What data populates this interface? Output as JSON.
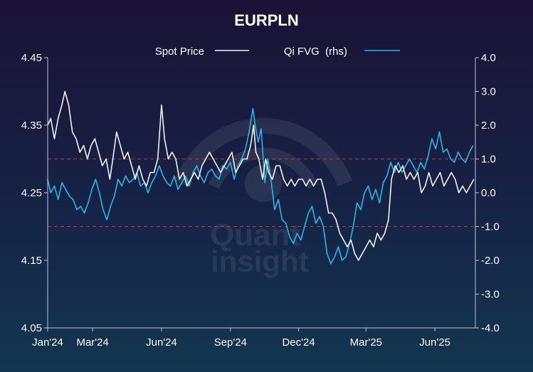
{
  "chart_data": {
    "type": "line",
    "title": "EURPLN",
    "watermark": [
      "Quant",
      "insight"
    ],
    "colors": {
      "spot": "#f2f2f2",
      "fvg": "#29b6e6",
      "bands": "#c0392b",
      "axis": "#bfc6d6"
    },
    "x_tick_labels": [
      "Jan'24",
      "Mar'24",
      "Jun'24",
      "Sep'24",
      "Dec'24",
      "Mar'25",
      "Jun'25"
    ],
    "x_tick_dates": [
      "2024-01-01",
      "2024-03-01",
      "2024-06-01",
      "2024-09-01",
      "2024-12-01",
      "2025-03-01",
      "2025-06-01"
    ],
    "x_range": [
      "2024-01-01",
      "2025-07-25"
    ],
    "y_left": {
      "ticks": [
        "4.05",
        "4.15",
        "4.25",
        "4.35",
        "4.45"
      ],
      "range": [
        4.05,
        4.45
      ]
    },
    "y_right": {
      "ticks": [
        "-4.0",
        "-3.0",
        "-2.0",
        "-1.0",
        "0.0",
        "1.0",
        "2.0",
        "3.0",
        "4.0"
      ],
      "range": [
        -4.0,
        4.0
      ]
    },
    "reference_lines_rhs": [
      1.0,
      -1.0
    ],
    "legend_position": "top-center",
    "series": [
      {
        "name": "Spot Price",
        "axis": "left",
        "points": [
          [
            "2024-01-01",
            4.35
          ],
          [
            "2024-01-05",
            4.36
          ],
          [
            "2024-01-10",
            4.33
          ],
          [
            "2024-01-15",
            4.36
          ],
          [
            "2024-01-20",
            4.38
          ],
          [
            "2024-01-24",
            4.4
          ],
          [
            "2024-01-29",
            4.38
          ],
          [
            "2024-02-03",
            4.34
          ],
          [
            "2024-02-08",
            4.33
          ],
          [
            "2024-02-13",
            4.31
          ],
          [
            "2024-02-18",
            4.32
          ],
          [
            "2024-02-23",
            4.3
          ],
          [
            "2024-02-28",
            4.32
          ],
          [
            "2024-03-04",
            4.33
          ],
          [
            "2024-03-09",
            4.31
          ],
          [
            "2024-03-14",
            4.29
          ],
          [
            "2024-03-19",
            4.3
          ],
          [
            "2024-03-24",
            4.27
          ],
          [
            "2024-03-28",
            4.3
          ],
          [
            "2024-04-02",
            4.34
          ],
          [
            "2024-04-07",
            4.32
          ],
          [
            "2024-04-12",
            4.3
          ],
          [
            "2024-04-17",
            4.31
          ],
          [
            "2024-04-22",
            4.29
          ],
          [
            "2024-04-27",
            4.27
          ],
          [
            "2024-05-02",
            4.29
          ],
          [
            "2024-05-07",
            4.27
          ],
          [
            "2024-05-12",
            4.26
          ],
          [
            "2024-05-17",
            4.28
          ],
          [
            "2024-05-22",
            4.28
          ],
          [
            "2024-05-27",
            4.3
          ],
          [
            "2024-06-01",
            4.38
          ],
          [
            "2024-06-05",
            4.33
          ],
          [
            "2024-06-10",
            4.3
          ],
          [
            "2024-06-15",
            4.31
          ],
          [
            "2024-06-20",
            4.3
          ],
          [
            "2024-06-25",
            4.27
          ],
          [
            "2024-06-30",
            4.28
          ],
          [
            "2024-07-05",
            4.26
          ],
          [
            "2024-07-10",
            4.27
          ],
          [
            "2024-07-15",
            4.28
          ],
          [
            "2024-07-20",
            4.27
          ],
          [
            "2024-07-25",
            4.29
          ],
          [
            "2024-07-30",
            4.3
          ],
          [
            "2024-08-04",
            4.31
          ],
          [
            "2024-08-09",
            4.3
          ],
          [
            "2024-08-14",
            4.29
          ],
          [
            "2024-08-19",
            4.28
          ],
          [
            "2024-08-24",
            4.29
          ],
          [
            "2024-08-29",
            4.3
          ],
          [
            "2024-09-03",
            4.31
          ],
          [
            "2024-09-08",
            4.28
          ],
          [
            "2024-09-13",
            4.29
          ],
          [
            "2024-09-18",
            4.3
          ],
          [
            "2024-09-23",
            4.3
          ],
          [
            "2024-09-28",
            4.32
          ],
          [
            "2024-10-02",
            4.35
          ],
          [
            "2024-10-05",
            4.31
          ],
          [
            "2024-10-09",
            4.3
          ],
          [
            "2024-10-14",
            4.27
          ],
          [
            "2024-10-18",
            4.3
          ],
          [
            "2024-10-22",
            4.28
          ],
          [
            "2024-10-27",
            4.27
          ],
          [
            "2024-11-01",
            4.29
          ],
          [
            "2024-11-06",
            4.29
          ],
          [
            "2024-11-11",
            4.27
          ],
          [
            "2024-11-16",
            4.26
          ],
          [
            "2024-11-21",
            4.27
          ],
          [
            "2024-11-26",
            4.26
          ],
          [
            "2024-12-01",
            4.27
          ],
          [
            "2024-12-06",
            4.27
          ],
          [
            "2024-12-11",
            4.26
          ],
          [
            "2024-12-16",
            4.27
          ],
          [
            "2024-12-21",
            4.26
          ],
          [
            "2024-12-26",
            4.27
          ],
          [
            "2024-12-31",
            4.27
          ],
          [
            "2025-01-05",
            4.25
          ],
          [
            "2025-01-10",
            4.22
          ],
          [
            "2025-01-15",
            4.22
          ],
          [
            "2025-01-20",
            4.21
          ],
          [
            "2025-01-25",
            4.19
          ],
          [
            "2025-01-30",
            4.18
          ],
          [
            "2025-02-04",
            4.17
          ],
          [
            "2025-02-09",
            4.18
          ],
          [
            "2025-02-14",
            4.16
          ],
          [
            "2025-02-19",
            4.15
          ],
          [
            "2025-02-24",
            4.16
          ],
          [
            "2025-03-01",
            4.17
          ],
          [
            "2025-03-06",
            4.18
          ],
          [
            "2025-03-11",
            4.17
          ],
          [
            "2025-03-16",
            4.19
          ],
          [
            "2025-03-21",
            4.18
          ],
          [
            "2025-03-26",
            4.19
          ],
          [
            "2025-03-31",
            4.21
          ],
          [
            "2025-04-04",
            4.27
          ],
          [
            "2025-04-09",
            4.29
          ],
          [
            "2025-04-14",
            4.28
          ],
          [
            "2025-04-19",
            4.29
          ],
          [
            "2025-04-24",
            4.27
          ],
          [
            "2025-04-29",
            4.28
          ],
          [
            "2025-05-04",
            4.27
          ],
          [
            "2025-05-09",
            4.28
          ],
          [
            "2025-05-14",
            4.25
          ],
          [
            "2025-05-19",
            4.26
          ],
          [
            "2025-05-24",
            4.28
          ],
          [
            "2025-05-29",
            4.26
          ],
          [
            "2025-06-03",
            4.27
          ],
          [
            "2025-06-08",
            4.28
          ],
          [
            "2025-06-13",
            4.26
          ],
          [
            "2025-06-18",
            4.27
          ],
          [
            "2025-06-23",
            4.28
          ],
          [
            "2025-06-28",
            4.27
          ],
          [
            "2025-07-03",
            4.25
          ],
          [
            "2025-07-08",
            4.26
          ],
          [
            "2025-07-13",
            4.25
          ],
          [
            "2025-07-18",
            4.26
          ],
          [
            "2025-07-23",
            4.27
          ]
        ]
      },
      {
        "name": "Qi FVG  (rhs)",
        "axis": "right",
        "points": [
          [
            "2024-01-01",
            0.4
          ],
          [
            "2024-01-05",
            0.0
          ],
          [
            "2024-01-10",
            0.2
          ],
          [
            "2024-01-15",
            -0.2
          ],
          [
            "2024-01-20",
            0.3
          ],
          [
            "2024-01-25",
            0.1
          ],
          [
            "2024-01-30",
            -0.1
          ],
          [
            "2024-02-04",
            -0.2
          ],
          [
            "2024-02-09",
            -0.5
          ],
          [
            "2024-02-14",
            -0.4
          ],
          [
            "2024-02-19",
            -0.6
          ],
          [
            "2024-02-24",
            -0.3
          ],
          [
            "2024-02-29",
            0.1
          ],
          [
            "2024-03-05",
            0.4
          ],
          [
            "2024-03-10",
            0.0
          ],
          [
            "2024-03-15",
            -0.5
          ],
          [
            "2024-03-20",
            -0.8
          ],
          [
            "2024-03-25",
            -0.4
          ],
          [
            "2024-03-30",
            -0.1
          ],
          [
            "2024-04-04",
            0.4
          ],
          [
            "2024-04-09",
            0.2
          ],
          [
            "2024-04-14",
            0.5
          ],
          [
            "2024-04-19",
            0.3
          ],
          [
            "2024-04-24",
            0.4
          ],
          [
            "2024-04-29",
            0.6
          ],
          [
            "2024-05-04",
            0.2
          ],
          [
            "2024-05-09",
            0.3
          ],
          [
            "2024-05-14",
            0.0
          ],
          [
            "2024-05-19",
            0.3
          ],
          [
            "2024-05-24",
            0.5
          ],
          [
            "2024-05-29",
            0.8
          ],
          [
            "2024-06-03",
            0.5
          ],
          [
            "2024-06-08",
            0.3
          ],
          [
            "2024-06-13",
            0.2
          ],
          [
            "2024-06-18",
            0.5
          ],
          [
            "2024-06-23",
            0.1
          ],
          [
            "2024-06-28",
            0.3
          ],
          [
            "2024-07-03",
            0.5
          ],
          [
            "2024-07-08",
            0.2
          ],
          [
            "2024-07-13",
            0.6
          ],
          [
            "2024-07-18",
            0.8
          ],
          [
            "2024-07-23",
            0.5
          ],
          [
            "2024-07-28",
            0.3
          ],
          [
            "2024-08-02",
            0.6
          ],
          [
            "2024-08-07",
            0.7
          ],
          [
            "2024-08-12",
            0.5
          ],
          [
            "2024-08-17",
            0.4
          ],
          [
            "2024-08-22",
            0.8
          ],
          [
            "2024-08-27",
            0.7
          ],
          [
            "2024-09-01",
            0.9
          ],
          [
            "2024-09-06",
            0.4
          ],
          [
            "2024-09-11",
            0.8
          ],
          [
            "2024-09-16",
            1.0
          ],
          [
            "2024-09-21",
            1.3
          ],
          [
            "2024-09-26",
            1.8
          ],
          [
            "2024-10-01",
            2.5
          ],
          [
            "2024-10-04",
            2.0
          ],
          [
            "2024-10-08",
            1.5
          ],
          [
            "2024-10-12",
            1.9
          ],
          [
            "2024-10-17",
            0.3
          ],
          [
            "2024-10-21",
            1.0
          ],
          [
            "2024-10-25",
            0.4
          ],
          [
            "2024-10-30",
            -0.5
          ],
          [
            "2024-11-04",
            -0.2
          ],
          [
            "2024-11-09",
            -0.8
          ],
          [
            "2024-11-14",
            -0.9
          ],
          [
            "2024-11-19",
            -1.3
          ],
          [
            "2024-11-24",
            -1.5
          ],
          [
            "2024-11-29",
            -1.2
          ],
          [
            "2024-12-04",
            -1.4
          ],
          [
            "2024-12-09",
            -1.0
          ],
          [
            "2024-12-14",
            -0.6
          ],
          [
            "2024-12-19",
            -0.4
          ],
          [
            "2024-12-24",
            -0.9
          ],
          [
            "2024-12-29",
            -0.7
          ],
          [
            "2025-01-03",
            -1.0
          ],
          [
            "2025-01-08",
            -1.8
          ],
          [
            "2025-01-13",
            -2.1
          ],
          [
            "2025-01-18",
            -1.9
          ],
          [
            "2025-01-23",
            -1.6
          ],
          [
            "2025-01-28",
            -2.0
          ],
          [
            "2025-02-02",
            -1.9
          ],
          [
            "2025-02-07",
            -1.5
          ],
          [
            "2025-02-12",
            -1.0
          ],
          [
            "2025-02-17",
            -0.3
          ],
          [
            "2025-02-22",
            -0.5
          ],
          [
            "2025-02-27",
            0.0
          ],
          [
            "2025-03-04",
            0.2
          ],
          [
            "2025-03-09",
            -0.2
          ],
          [
            "2025-03-14",
            0.1
          ],
          [
            "2025-03-19",
            -0.3
          ],
          [
            "2025-03-24",
            0.3
          ],
          [
            "2025-03-29",
            0.5
          ],
          [
            "2025-04-03",
            0.9
          ],
          [
            "2025-04-08",
            0.6
          ],
          [
            "2025-04-13",
            0.9
          ],
          [
            "2025-04-18",
            0.6
          ],
          [
            "2025-04-23",
            0.8
          ],
          [
            "2025-04-28",
            1.0
          ],
          [
            "2025-05-03",
            0.8
          ],
          [
            "2025-05-08",
            0.6
          ],
          [
            "2025-05-13",
            0.9
          ],
          [
            "2025-05-18",
            0.7
          ],
          [
            "2025-05-23",
            1.1
          ],
          [
            "2025-05-28",
            1.6
          ],
          [
            "2025-06-02",
            1.3
          ],
          [
            "2025-06-07",
            1.8
          ],
          [
            "2025-06-12",
            1.2
          ],
          [
            "2025-06-17",
            1.3
          ],
          [
            "2025-06-22",
            1.0
          ],
          [
            "2025-06-27",
            0.9
          ],
          [
            "2025-07-02",
            1.2
          ],
          [
            "2025-07-07",
            1.0
          ],
          [
            "2025-07-12",
            0.9
          ],
          [
            "2025-07-17",
            1.2
          ],
          [
            "2025-07-22",
            1.4
          ]
        ]
      }
    ]
  }
}
